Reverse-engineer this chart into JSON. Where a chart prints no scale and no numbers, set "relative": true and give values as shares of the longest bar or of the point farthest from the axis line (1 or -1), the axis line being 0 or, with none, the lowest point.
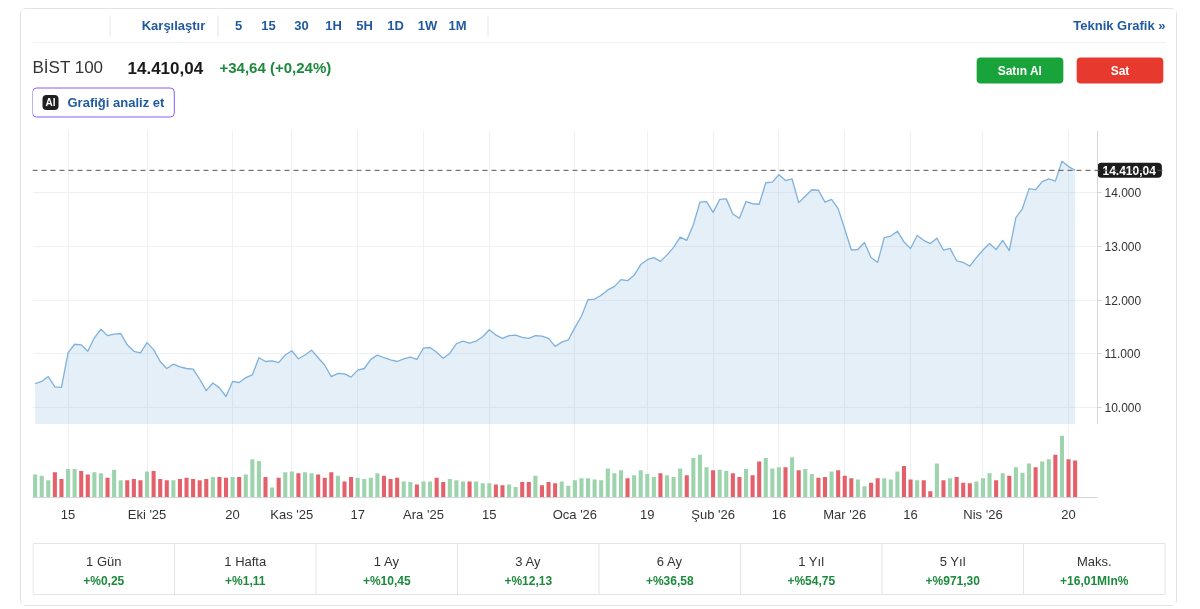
{
  "chart_data": [
    {
      "type": "other",
      "annotations": [
        "Karşılaştır",
        "5",
        "15",
        "30",
        "1H",
        "5H",
        "1D",
        "1W",
        "1M",
        "Teknik Grafik »"
      ]
    },
    {
      "type": "area",
      "title": "BİST 100",
      "subtitle": "14.410,04",
      "annotations": [
        "+34,64 (+0,24%)",
        "AI",
        "Grafiği analiz et",
        "Satın Al",
        "Sat"
      ],
      "categories": [
        null,
        null,
        null,
        null,
        null,
        null,
        null,
        null,
        null,
        null,
        null,
        null,
        null,
        null,
        null,
        null,
        null,
        null,
        null,
        null,
        null,
        null,
        null,
        null,
        null,
        null,
        null,
        null,
        null,
        null,
        null,
        null,
        null,
        null,
        null,
        null,
        null,
        null,
        null,
        null,
        null,
        null,
        null,
        null,
        null,
        null,
        null,
        null,
        null,
        null,
        null,
        null,
        null,
        null,
        null,
        null,
        null,
        null,
        null,
        null,
        null,
        null,
        null,
        null,
        null,
        null,
        null,
        null,
        null,
        null,
        null,
        null,
        null,
        null,
        null,
        null,
        null,
        null,
        null,
        null,
        null,
        null,
        null,
        null,
        null,
        null,
        null,
        null,
        null,
        null,
        null,
        null,
        null,
        null,
        null,
        null,
        null,
        null,
        null,
        null,
        null,
        null,
        null,
        null,
        null,
        null,
        null,
        null,
        null,
        null,
        null,
        null,
        null,
        null,
        null,
        null,
        null,
        null,
        null,
        null,
        null,
        null,
        null,
        null,
        null,
        null,
        null,
        null,
        null,
        null,
        null,
        null,
        null,
        null,
        null,
        null,
        null,
        null,
        null,
        null,
        null,
        null,
        null,
        null,
        null,
        null,
        null,
        null,
        null,
        null,
        null,
        null,
        null,
        null,
        null,
        null,
        null,
        null,
        null
      ],
      "values": [
        10450,
        10490,
        10580,
        10390,
        10380,
        11020,
        11180,
        11170,
        11050,
        11300,
        11460,
        11340,
        11370,
        11380,
        11170,
        11050,
        11020,
        11210,
        11080,
        10860,
        10730,
        10810,
        10760,
        10730,
        10720,
        10530,
        10320,
        10460,
        10370,
        10210,
        10490,
        10470,
        10560,
        10610,
        10930,
        10860,
        10870,
        10840,
        10980,
        11060,
        10910,
        10980,
        11070,
        10930,
        10790,
        10580,
        10640,
        10630,
        10570,
        10700,
        10730,
        10900,
        10980,
        10930,
        10890,
        10860,
        10910,
        10940,
        10900,
        11110,
        11120,
        11030,
        10920,
        11010,
        11190,
        11240,
        11200,
        11240,
        11320,
        11450,
        11350,
        11290,
        11340,
        11350,
        11310,
        11290,
        11340,
        11330,
        11290,
        11140,
        11220,
        11260,
        11490,
        11700,
        12010,
        12020,
        12090,
        12190,
        12250,
        12380,
        12360,
        12460,
        12660,
        12750,
        12790,
        12720,
        12840,
        12980,
        13170,
        13110,
        13400,
        13820,
        13830,
        13630,
        13870,
        13880,
        13600,
        13520,
        13830,
        13790,
        13780,
        14180,
        14190,
        14330,
        14220,
        14250,
        13810,
        13930,
        14050,
        14040,
        13820,
        13870,
        13700,
        13320,
        12930,
        12940,
        13070,
        12790,
        12700,
        13160,
        13190,
        13280,
        13080,
        12960,
        13200,
        13110,
        13050,
        13150,
        12930,
        12960,
        12730,
        12700,
        12630,
        12790,
        12930,
        13050,
        12940,
        13110,
        12920,
        13530,
        13700,
        14070,
        14050,
        14200,
        14250,
        14210,
        14580,
        14480,
        14410
      ],
      "color": "#7eb1dc",
      "ylim": [
        9690,
        15150
      ],
      "yticks": [
        {
          "value": 10000,
          "label": "10.000"
        },
        {
          "value": 11000,
          "label": "11.000"
        },
        {
          "value": 12000,
          "label": "12.000"
        },
        {
          "value": 13000,
          "label": "13.000"
        },
        {
          "value": 14000,
          "label": "14.000"
        }
      ],
      "grid": true,
      "tick_labels": "y",
      "ref_lines": [
        {
          "axis": "y",
          "value": 14410.04,
          "label": "14.410,04",
          "color": "#555555",
          "line_style": "dashed"
        }
      ]
    },
    {
      "type": "bar",
      "relative": true,
      "grid": "x",
      "tick_labels": "x",
      "categories": [
        null,
        null,
        null,
        null,
        null,
        "15",
        null,
        null,
        null,
        null,
        null,
        null,
        null,
        null,
        null,
        null,
        null,
        "Eki '25",
        null,
        null,
        null,
        null,
        null,
        null,
        null,
        null,
        null,
        null,
        null,
        null,
        "20",
        null,
        null,
        null,
        null,
        null,
        null,
        null,
        null,
        "Kas '25",
        null,
        null,
        null,
        null,
        null,
        null,
        null,
        null,
        null,
        "17",
        null,
        null,
        null,
        null,
        null,
        null,
        null,
        null,
        null,
        "Ara '25",
        null,
        null,
        null,
        null,
        null,
        null,
        null,
        null,
        null,
        "15",
        null,
        null,
        null,
        null,
        null,
        null,
        null,
        null,
        null,
        null,
        null,
        null,
        "Oca '26",
        null,
        null,
        null,
        null,
        null,
        null,
        null,
        null,
        null,
        null,
        "19",
        null,
        null,
        null,
        null,
        null,
        null,
        null,
        null,
        null,
        "Şub '26",
        null,
        null,
        null,
        null,
        null,
        null,
        null,
        null,
        null,
        "16",
        null,
        null,
        null,
        null,
        null,
        null,
        null,
        null,
        null,
        "Mar '26",
        null,
        null,
        null,
        null,
        null,
        null,
        null,
        null,
        null,
        "16",
        null,
        null,
        null,
        null,
        null,
        null,
        null,
        null,
        null,
        null,
        "Nis '26",
        null,
        null,
        null,
        null,
        null,
        null,
        null,
        null,
        null,
        null,
        null,
        null,
        "20",
        null
      ],
      "values": [
        0.37,
        0.35,
        0.28,
        0.41,
        0.3,
        0.46,
        0.46,
        0.43,
        0.37,
        0.41,
        0.39,
        0.32,
        0.45,
        0.28,
        0.28,
        0.3,
        0.28,
        0.42,
        0.43,
        0.3,
        0.28,
        0.28,
        0.3,
        0.32,
        0.3,
        0.28,
        0.3,
        0.33,
        0.33,
        0.32,
        0.33,
        0.33,
        0.37,
        0.62,
        0.59,
        0.33,
        0.16,
        0.32,
        0.41,
        0.42,
        0.39,
        0.41,
        0.39,
        0.37,
        0.32,
        0.41,
        0.35,
        0.26,
        0.33,
        0.32,
        0.3,
        0.32,
        0.39,
        0.35,
        0.3,
        0.32,
        0.26,
        0.25,
        0.21,
        0.26,
        0.26,
        0.32,
        0.25,
        0.3,
        0.28,
        0.26,
        0.26,
        0.26,
        0.23,
        0.23,
        0.21,
        0.2,
        0.21,
        0.17,
        0.25,
        0.25,
        0.35,
        0.2,
        0.25,
        0.23,
        0.26,
        0.19,
        0.28,
        0.31,
        0.31,
        0.29,
        0.28,
        0.47,
        0.39,
        0.44,
        0.31,
        0.36,
        0.44,
        0.38,
        0.33,
        0.39,
        0.36,
        0.33,
        0.47,
        0.36,
        0.64,
        0.69,
        0.49,
        0.44,
        0.45,
        0.43,
        0.39,
        0.33,
        0.46,
        0.36,
        0.58,
        0.64,
        0.47,
        0.49,
        0.49,
        0.65,
        0.44,
        0.46,
        0.38,
        0.32,
        0.33,
        0.42,
        0.44,
        0.35,
        0.31,
        0.29,
        0.18,
        0.24,
        0.31,
        0.31,
        0.29,
        0.42,
        0.51,
        0.29,
        0.28,
        0.28,
        0.1,
        0.55,
        0.28,
        0.31,
        0.33,
        0.24,
        0.23,
        0.26,
        0.31,
        0.39,
        0.28,
        0.39,
        0.35,
        0.49,
        0.4,
        0.55,
        0.49,
        0.58,
        0.62,
        0.69,
        1.0,
        0.62,
        0.6
      ],
      "colors": [
        "#9dd4ad",
        "#9dd4ad",
        "#9dd4ad",
        "#e4616b",
        "#e4616b",
        "#9dd4ad",
        "#9dd4ad",
        "#e4616b",
        "#e4616b",
        "#9dd4ad",
        "#9dd4ad",
        "#e4616b",
        "#9dd4ad",
        "#9dd4ad",
        "#e4616b",
        "#e4616b",
        "#e4616b",
        "#9dd4ad",
        "#e4616b",
        "#e4616b",
        "#e4616b",
        "#9dd4ad",
        "#e4616b",
        "#e4616b",
        "#e4616b",
        "#e4616b",
        "#e4616b",
        "#9dd4ad",
        "#e4616b",
        "#e4616b",
        "#9dd4ad",
        "#e4616b",
        "#9dd4ad",
        "#9dd4ad",
        "#9dd4ad",
        "#e4616b",
        "#9dd4ad",
        "#e4616b",
        "#9dd4ad",
        "#9dd4ad",
        "#e4616b",
        "#9dd4ad",
        "#9dd4ad",
        "#e4616b",
        "#e4616b",
        "#e4616b",
        "#9dd4ad",
        "#e4616b",
        "#e4616b",
        "#9dd4ad",
        "#9dd4ad",
        "#9dd4ad",
        "#9dd4ad",
        "#e4616b",
        "#e4616b",
        "#e4616b",
        "#9dd4ad",
        "#9dd4ad",
        "#e4616b",
        "#9dd4ad",
        "#9dd4ad",
        "#e4616b",
        "#e4616b",
        "#9dd4ad",
        "#9dd4ad",
        "#9dd4ad",
        "#e4616b",
        "#9dd4ad",
        "#9dd4ad",
        "#9dd4ad",
        "#e4616b",
        "#e4616b",
        "#9dd4ad",
        "#9dd4ad",
        "#e4616b",
        "#e4616b",
        "#9dd4ad",
        "#e4616b",
        "#e4616b",
        "#e4616b",
        "#9dd4ad",
        "#9dd4ad",
        "#9dd4ad",
        "#9dd4ad",
        "#9dd4ad",
        "#9dd4ad",
        "#9dd4ad",
        "#9dd4ad",
        "#9dd4ad",
        "#9dd4ad",
        "#e4616b",
        "#9dd4ad",
        "#9dd4ad",
        "#9dd4ad",
        "#9dd4ad",
        "#e4616b",
        "#9dd4ad",
        "#9dd4ad",
        "#9dd4ad",
        "#e4616b",
        "#9dd4ad",
        "#9dd4ad",
        "#9dd4ad",
        "#e4616b",
        "#9dd4ad",
        "#9dd4ad",
        "#e4616b",
        "#e4616b",
        "#9dd4ad",
        "#e4616b",
        "#e4616b",
        "#9dd4ad",
        "#9dd4ad",
        "#9dd4ad",
        "#e4616b",
        "#9dd4ad",
        "#e4616b",
        "#9dd4ad",
        "#9dd4ad",
        "#e4616b",
        "#e4616b",
        "#9dd4ad",
        "#e4616b",
        "#e4616b",
        "#e4616b",
        "#9dd4ad",
        "#9dd4ad",
        "#e4616b",
        "#e4616b",
        "#9dd4ad",
        "#9dd4ad",
        "#9dd4ad",
        "#e4616b",
        "#e4616b",
        "#9dd4ad",
        "#e4616b",
        "#e4616b",
        "#9dd4ad",
        "#e4616b",
        "#9dd4ad",
        "#e4616b",
        "#e4616b",
        "#e4616b",
        "#9dd4ad",
        "#9dd4ad",
        "#9dd4ad",
        "#e4616b",
        "#9dd4ad",
        "#e4616b",
        "#9dd4ad",
        "#9dd4ad",
        "#9dd4ad",
        "#e4616b",
        "#9dd4ad",
        "#9dd4ad",
        "#e4616b",
        "#9dd4ad",
        "#e4616b",
        "#e4616b"
      ]
    },
    {
      "type": "other",
      "annotations": [
        "1 Gün",
        "+%0,25",
        "1 Hafta",
        "+%1,11",
        "1 Ay",
        "+%10,45",
        "3 Ay",
        "+%12,13",
        "6 Ay",
        "+%36,58",
        "1 Yıl",
        "+%54,75",
        "5 Yıl",
        "+%971,30",
        "Maks.",
        "+16,01Mln%"
      ]
    }
  ]
}
